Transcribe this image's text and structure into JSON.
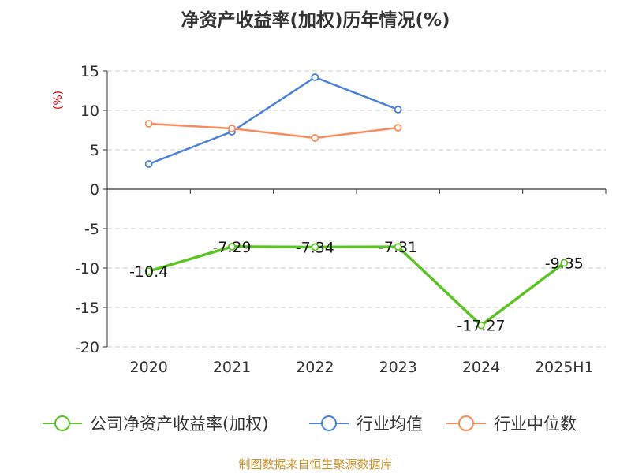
{
  "chart_data": {
    "type": "line",
    "title": "净资产收益率(加权)历年情况(%)",
    "xlabel": "",
    "ylabel": "(%)",
    "categories": [
      "2020",
      "2021",
      "2022",
      "2023",
      "2024",
      "2025H1"
    ],
    "yticks": [
      "15",
      "10",
      "5",
      "0",
      "-5",
      "-10",
      "-15",
      "-20"
    ],
    "ylim": [
      -20,
      15
    ],
    "grid": true,
    "legend_position": "bottom",
    "series": [
      {
        "name": "公司净资产收益率(加权)",
        "color": "#5cc323",
        "values": [
          -10.4,
          -7.29,
          -7.34,
          -7.31,
          -17.27,
          -9.35
        ],
        "labels": [
          "-10.4",
          "-7.29",
          "-7.34",
          "-7.31",
          "-17.27",
          "-9.35"
        ]
      },
      {
        "name": "行业均值",
        "color": "#4a7fdc",
        "values": [
          3.2,
          7.3,
          14.2,
          10.1,
          null,
          null
        ]
      },
      {
        "name": "行业中位数",
        "color": "#f98b5c",
        "values": [
          8.3,
          7.7,
          6.5,
          7.8,
          null,
          null
        ]
      }
    ]
  },
  "source": "制图数据来自恒生聚源数据库"
}
